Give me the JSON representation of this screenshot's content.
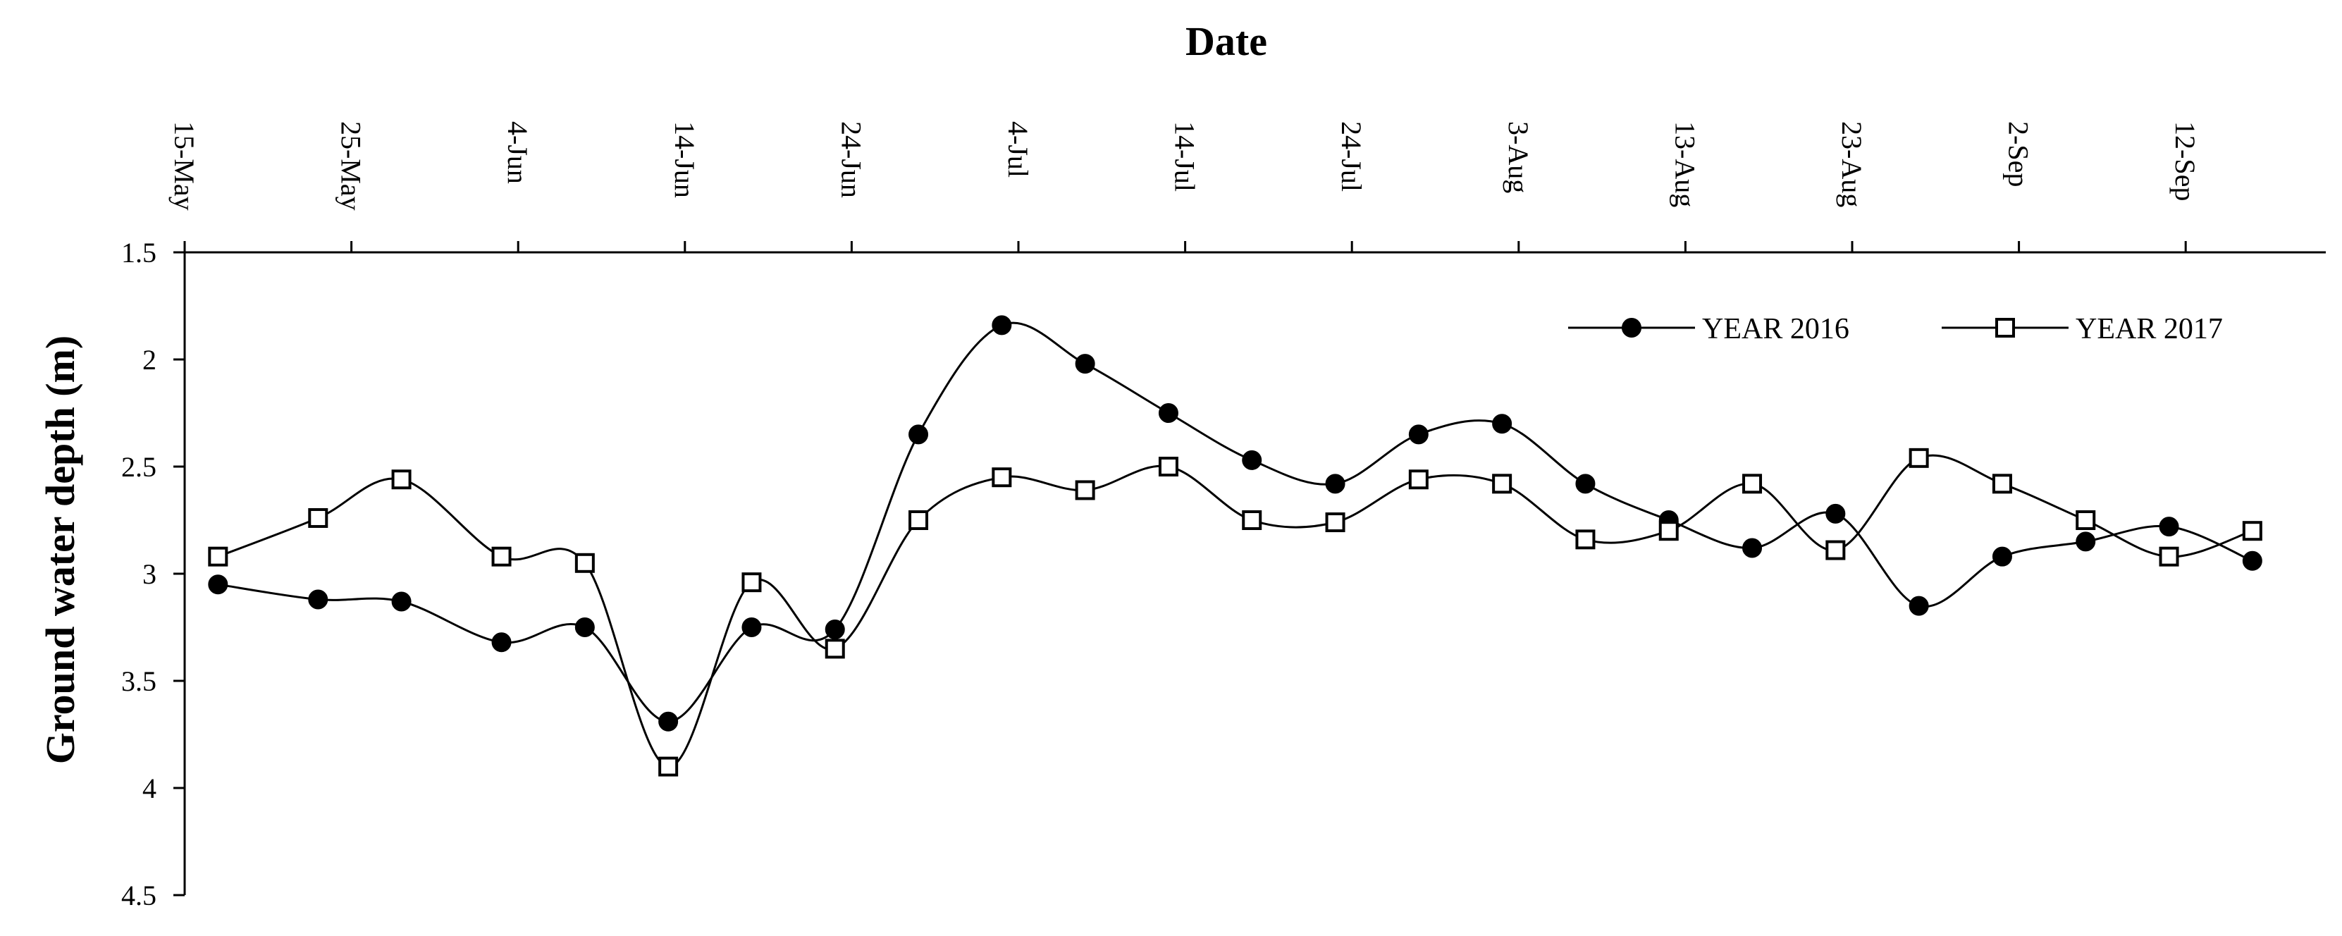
{
  "chart_data": {
    "type": "line",
    "xlabel": "Date",
    "ylabel": "Ground water depth (m)",
    "x_axis_position": "top",
    "y_axis_inverted": true,
    "ylim": [
      1.5,
      4.5
    ],
    "yticks": [
      "1.5",
      "2",
      "2.5",
      "3",
      "3.5",
      "4",
      "4.5"
    ],
    "xticks": [
      "15-May",
      "25-May",
      "4-Jun",
      "14-Jun",
      "24-Jun",
      "4-Jul",
      "14-Jul",
      "24-Jul",
      "3-Aug",
      "13-Aug",
      "23-Aug",
      "2-Sep",
      "12-Sep"
    ],
    "x_unit": "day",
    "grid": false,
    "legend_position": "top-right",
    "series": [
      {
        "name": "YEAR 2016",
        "marker": "filled-circle",
        "color": "#000000",
        "points": [
          {
            "x": "17-May",
            "y": 3.05
          },
          {
            "x": "23-May",
            "y": 3.12
          },
          {
            "x": "28-May",
            "y": 3.13
          },
          {
            "x": "3-Jun",
            "y": 3.32
          },
          {
            "x": "8-Jun",
            "y": 3.25
          },
          {
            "x": "13-Jun",
            "y": 3.69
          },
          {
            "x": "18-Jun",
            "y": 3.25
          },
          {
            "x": "23-Jun",
            "y": 3.26
          },
          {
            "x": "28-Jun",
            "y": 2.35
          },
          {
            "x": "3-Jul",
            "y": 1.84
          },
          {
            "x": "8-Jul",
            "y": 2.02
          },
          {
            "x": "13-Jul",
            "y": 2.25
          },
          {
            "x": "18-Jul",
            "y": 2.47
          },
          {
            "x": "23-Jul",
            "y": 2.58
          },
          {
            "x": "28-Jul",
            "y": 2.35
          },
          {
            "x": "2-Aug",
            "y": 2.3
          },
          {
            "x": "7-Aug",
            "y": 2.58
          },
          {
            "x": "12-Aug",
            "y": 2.75
          },
          {
            "x": "17-Aug",
            "y": 2.88
          },
          {
            "x": "22-Aug",
            "y": 2.72
          },
          {
            "x": "27-Aug",
            "y": 3.15
          },
          {
            "x": "1-Sep",
            "y": 2.92
          },
          {
            "x": "6-Sep",
            "y": 2.85
          },
          {
            "x": "11-Sep",
            "y": 2.78
          },
          {
            "x": "16-Sep",
            "y": 2.94
          }
        ]
      },
      {
        "name": "YEAR 2017",
        "marker": "open-square",
        "color": "#000000",
        "points": [
          {
            "x": "17-May",
            "y": 2.92
          },
          {
            "x": "23-May",
            "y": 2.74
          },
          {
            "x": "28-May",
            "y": 2.56
          },
          {
            "x": "3-Jun",
            "y": 2.92
          },
          {
            "x": "8-Jun",
            "y": 2.95
          },
          {
            "x": "13-Jun",
            "y": 3.9
          },
          {
            "x": "18-Jun",
            "y": 3.04
          },
          {
            "x": "23-Jun",
            "y": 3.35
          },
          {
            "x": "28-Jun",
            "y": 2.75
          },
          {
            "x": "3-Jul",
            "y": 2.55
          },
          {
            "x": "8-Jul",
            "y": 2.61
          },
          {
            "x": "13-Jul",
            "y": 2.5
          },
          {
            "x": "18-Jul",
            "y": 2.75
          },
          {
            "x": "23-Jul",
            "y": 2.76
          },
          {
            "x": "28-Jul",
            "y": 2.56
          },
          {
            "x": "2-Aug",
            "y": 2.58
          },
          {
            "x": "7-Aug",
            "y": 2.84
          },
          {
            "x": "12-Aug",
            "y": 2.8
          },
          {
            "x": "17-Aug",
            "y": 2.58
          },
          {
            "x": "22-Aug",
            "y": 2.89
          },
          {
            "x": "27-Aug",
            "y": 2.46
          },
          {
            "x": "1-Sep",
            "y": 2.58
          },
          {
            "x": "6-Sep",
            "y": 2.75
          },
          {
            "x": "11-Sep",
            "y": 2.92
          },
          {
            "x": "16-Sep",
            "y": 2.8
          }
        ]
      }
    ]
  }
}
